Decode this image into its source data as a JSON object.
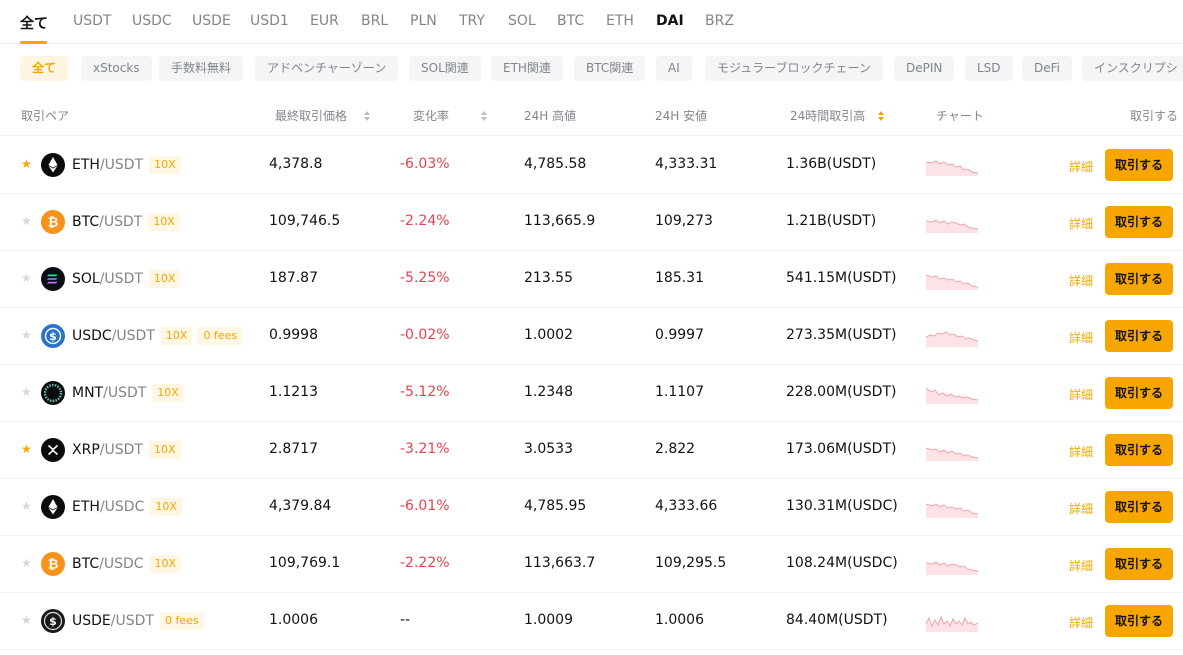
{
  "quote_tabs": [
    {
      "label": "全て",
      "active": true
    },
    {
      "label": "USDT"
    },
    {
      "label": "USDC"
    },
    {
      "label": "USDE"
    },
    {
      "label": "USD1"
    },
    {
      "label": "EUR"
    },
    {
      "label": "BRL"
    },
    {
      "label": "PLN"
    },
    {
      "label": "TRY"
    },
    {
      "label": "SOL"
    },
    {
      "label": "BTC"
    },
    {
      "label": "ETH"
    },
    {
      "label": "DAI"
    },
    {
      "label": "BRZ"
    }
  ],
  "categories": [
    {
      "label": "全て",
      "active": true
    },
    {
      "label": "xStocks"
    },
    {
      "label": "手数料無料"
    },
    {
      "label": "アドベンチャーゾーン"
    },
    {
      "label": "SOL関連"
    },
    {
      "label": "ETH関連"
    },
    {
      "label": "BTC関連"
    },
    {
      "label": "AI"
    },
    {
      "label": "モジュラーブロックチェーン"
    },
    {
      "label": "DePIN"
    },
    {
      "label": "LSD"
    },
    {
      "label": "DeFi"
    },
    {
      "label": "インスクリプシ"
    }
  ],
  "table": {
    "headers": {
      "pair": "取引ペア",
      "last_price": "最終取引価格",
      "change": "変化率",
      "high": "24H 高値",
      "low": "24H 安値",
      "volume": "24時間取引高",
      "chart": "チャート",
      "trade": "取引する"
    },
    "rows": [
      {
        "base": "ETH",
        "quote": "/USDT",
        "coin": "eth-icon",
        "fav": true,
        "badges": [
          "10X"
        ],
        "price": "4,378.8",
        "change": "-6.03%",
        "high": "4,785.58",
        "low": "4,333.31",
        "volume": "1.36B(USDT)",
        "detail": "詳細",
        "trade": "取引する"
      },
      {
        "base": "BTC",
        "quote": "/USDT",
        "coin": "btc-icon",
        "fav": false,
        "badges": [
          "10X"
        ],
        "price": "109,746.5",
        "change": "-2.24%",
        "high": "113,665.9",
        "low": "109,273",
        "volume": "1.21B(USDT)",
        "detail": "詳細",
        "trade": "取引する"
      },
      {
        "base": "SOL",
        "quote": "/USDT",
        "coin": "sol-icon",
        "fav": false,
        "badges": [
          "10X"
        ],
        "price": "187.87",
        "change": "-5.25%",
        "high": "213.55",
        "low": "185.31",
        "volume": "541.15M(USDT)",
        "detail": "詳細",
        "trade": "取引する"
      },
      {
        "base": "USDC",
        "quote": "/USDT",
        "coin": "usdc-icon",
        "fav": false,
        "badges": [
          "10X",
          "0 fees"
        ],
        "price": "0.9998",
        "change": "-0.02%",
        "high": "1.0002",
        "low": "0.9997",
        "volume": "273.35M(USDT)",
        "detail": "詳細",
        "trade": "取引する"
      },
      {
        "base": "MNT",
        "quote": "/USDT",
        "coin": "mnt-icon",
        "fav": false,
        "badges": [
          "10X"
        ],
        "price": "1.1213",
        "change": "-5.12%",
        "high": "1.2348",
        "low": "1.1107",
        "volume": "228.00M(USDT)",
        "detail": "詳細",
        "trade": "取引する"
      },
      {
        "base": "XRP",
        "quote": "/USDT",
        "coin": "xrp-icon",
        "fav": true,
        "badges": [
          "10X"
        ],
        "price": "2.8717",
        "change": "-3.21%",
        "high": "3.0533",
        "low": "2.822",
        "volume": "173.06M(USDT)",
        "detail": "詳細",
        "trade": "取引する"
      },
      {
        "base": "ETH",
        "quote": "/USDC",
        "coin": "eth-icon",
        "fav": false,
        "badges": [
          "10X"
        ],
        "price": "4,379.84",
        "change": "-6.01%",
        "high": "4,785.95",
        "low": "4,333.66",
        "volume": "130.31M(USDC)",
        "detail": "詳細",
        "trade": "取引する"
      },
      {
        "base": "BTC",
        "quote": "/USDC",
        "coin": "btc-icon",
        "fav": false,
        "badges": [
          "10X"
        ],
        "price": "109,769.1",
        "change": "-2.22%",
        "high": "113,663.7",
        "low": "109,295.5",
        "volume": "108.24M(USDC)",
        "detail": "詳細",
        "trade": "取引する"
      },
      {
        "base": "USDE",
        "quote": "/USDT",
        "coin": "usde-icon",
        "fav": false,
        "badges": [
          "0 fees"
        ],
        "price": "1.0006",
        "change": "--",
        "high": "1.0009",
        "low": "1.0006",
        "volume": "84.40M(USDT)",
        "detail": "詳細",
        "trade": "取引する"
      }
    ]
  },
  "colors": {
    "accent": "#f7a600",
    "negative": "#e8424d"
  }
}
